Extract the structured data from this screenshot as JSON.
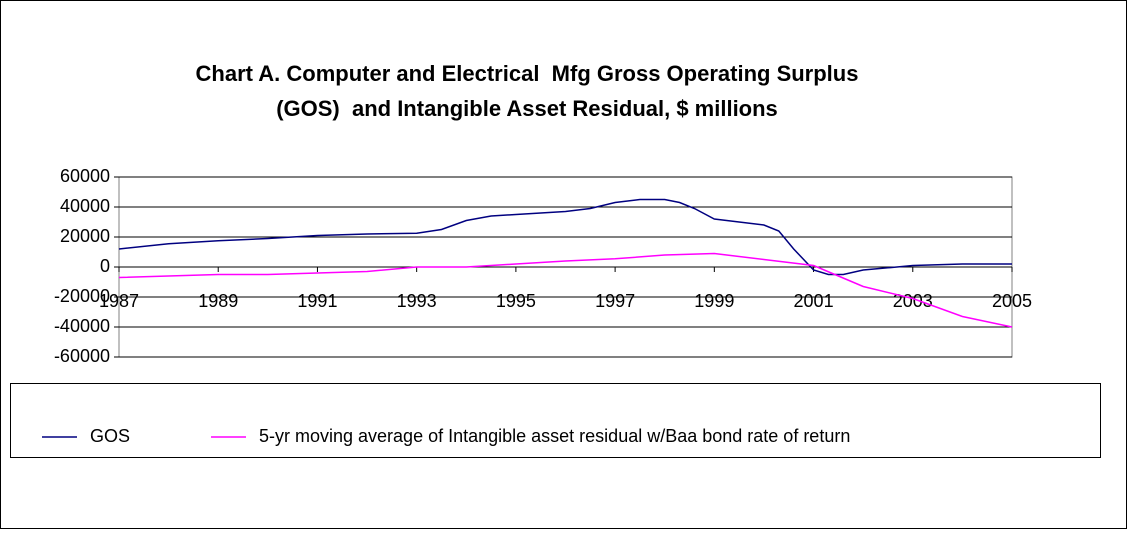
{
  "chart_data": {
    "type": "line",
    "title": [
      "Chart A. Computer and Electrical  Mfg Gross Operating Surplus",
      "(GOS)  and Intangible Asset Residual, $ millions"
    ],
    "xlim": [
      1987,
      2005
    ],
    "xticks": [
      1987,
      1989,
      1991,
      1993,
      1995,
      1997,
      1999,
      2001,
      2003,
      2005
    ],
    "ylim": [
      -60000,
      60000
    ],
    "yticks": [
      -60000,
      -40000,
      -20000,
      0,
      20000,
      40000,
      60000
    ],
    "grid": true,
    "legend": "bottom",
    "series": [
      {
        "name": "GOS",
        "color": "#000080",
        "x": [
          1987,
          1988,
          1989,
          1990,
          1991,
          1992,
          1993,
          1993.5,
          1994,
          1994.5,
          1995,
          1996,
          1996.5,
          1997,
          1997.5,
          1998,
          1998.3,
          1998.6,
          1999,
          1999.5,
          2000,
          2000.3,
          2000.6,
          2001,
          2001.3,
          2001.6,
          2002,
          2002.5,
          2003,
          2004,
          2005
        ],
        "values": [
          12000,
          15500,
          17500,
          19000,
          21000,
          22000,
          22500,
          25000,
          31000,
          34000,
          35000,
          37000,
          39000,
          43000,
          45000,
          45000,
          43000,
          39000,
          32000,
          30000,
          28000,
          24000,
          12000,
          -2000,
          -5000,
          -5000,
          -2000,
          -500,
          1000,
          2000,
          2000
        ]
      },
      {
        "name": "5-yr moving average of Intangible asset residual w/Baa bond rate of return",
        "color": "#ff00ff",
        "x": [
          1987,
          1989,
          1990,
          1992,
          1993,
          1994,
          1995,
          1996,
          1997,
          1998,
          1999,
          1999.5,
          2000,
          2001,
          2001.5,
          2002,
          2003,
          2004,
          2005
        ],
        "values": [
          -7000,
          -5000,
          -5000,
          -3000,
          0,
          0,
          2000,
          4000,
          5500,
          8000,
          9000,
          7000,
          5000,
          1000,
          -6000,
          -13000,
          -21000,
          -33000,
          -40000
        ]
      }
    ]
  }
}
